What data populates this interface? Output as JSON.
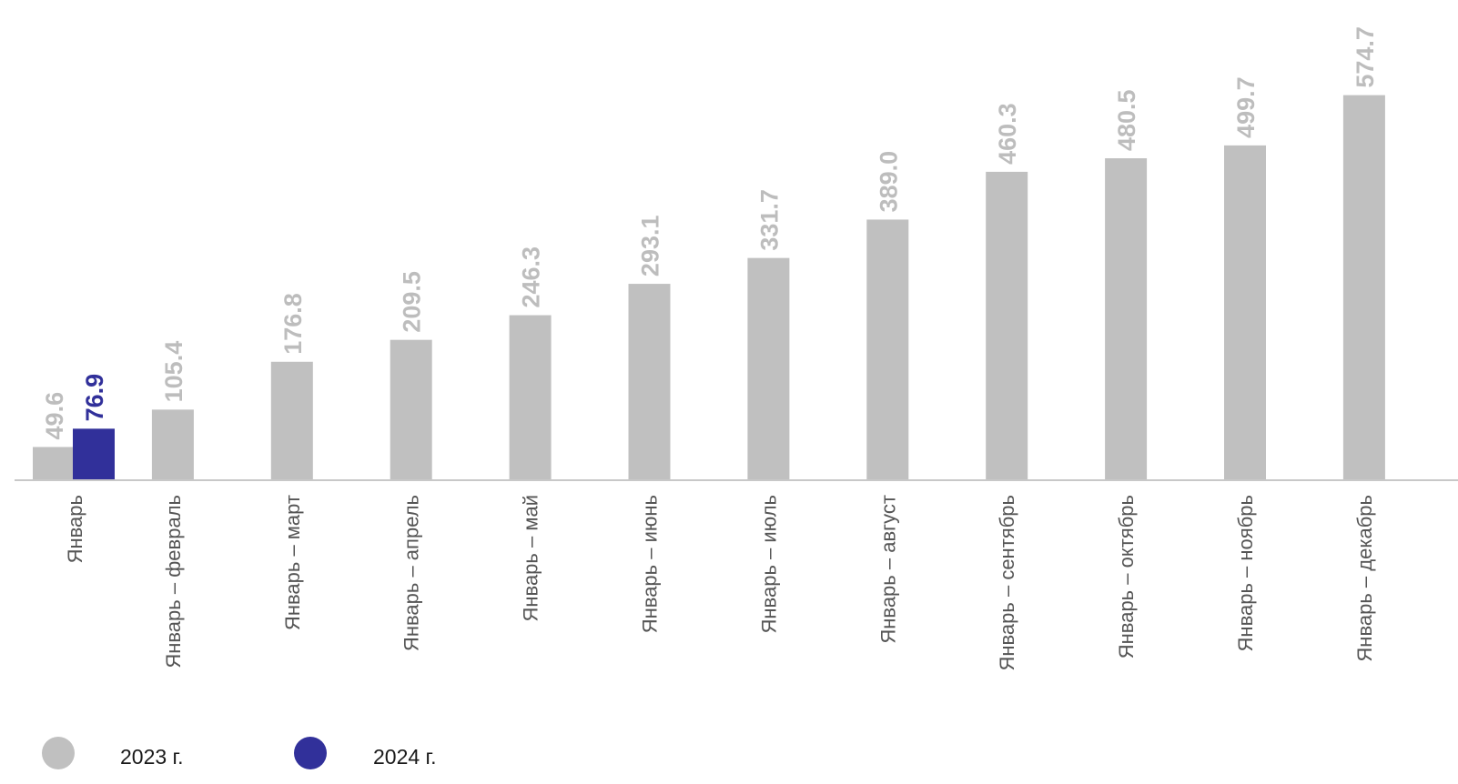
{
  "chart_data": {
    "type": "bar",
    "title": "",
    "xlabel": "",
    "ylabel": "",
    "ylim": [
      0,
      600
    ],
    "grid": false,
    "legend_position": "bottom-left",
    "categories": [
      "Январь",
      "Январь – февраль",
      "Январь – март",
      "Январь – апрель",
      "Январь – май",
      "Январь – июнь",
      "Январь – июль",
      "Январь – август",
      "Январь – сентябрь",
      "Январь – октябрь",
      "Январь – ноябрь",
      "Январь – декабрь"
    ],
    "series": [
      {
        "name": "2023 г.",
        "color": "#c0c0c0",
        "label_color": "#bdbdbd",
        "values": [
          49.6,
          105.4,
          176.8,
          209.5,
          246.3,
          293.1,
          331.7,
          389.0,
          460.3,
          480.5,
          499.7,
          574.7
        ],
        "labels": [
          "49.6",
          "105.4",
          "176.8",
          "209.5",
          "246.3",
          "293.1",
          "331.7",
          "389.0",
          "460.3",
          "480.5",
          "499.7",
          "574.7"
        ]
      },
      {
        "name": "2024 г.",
        "color": "#31309a",
        "label_color": "#31309a",
        "values": [
          76.9,
          null,
          null,
          null,
          null,
          null,
          null,
          null,
          null,
          null,
          null,
          null
        ],
        "labels": [
          "76.9",
          null,
          null,
          null,
          null,
          null,
          null,
          null,
          null,
          null,
          null,
          null
        ]
      }
    ]
  }
}
